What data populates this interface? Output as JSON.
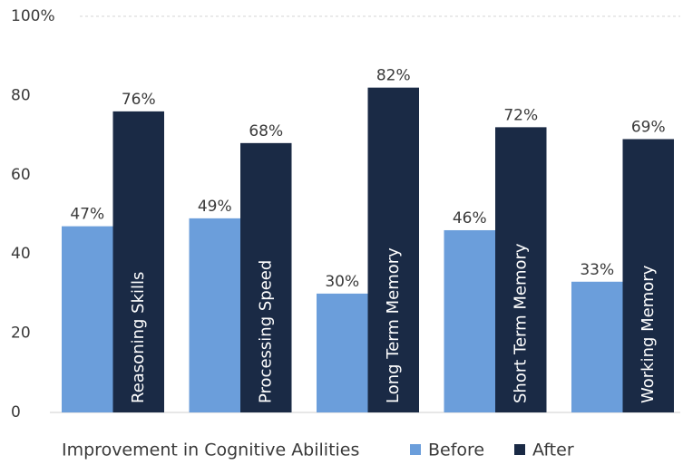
{
  "chart_data": {
    "type": "bar",
    "categories": [
      "Reasoning Skills",
      "Processing Speed",
      "Long Term Memory",
      "Short Term Memory",
      "Working Memory"
    ],
    "series": [
      {
        "name": "Before",
        "color": "#6b9edb",
        "values": [
          47,
          49,
          30,
          46,
          33
        ],
        "value_labels": [
          "47%",
          "49%",
          "30%",
          "46%",
          "33%"
        ]
      },
      {
        "name": "After",
        "color": "#1a2a45",
        "values": [
          76,
          68,
          82,
          72,
          69
        ],
        "value_labels": [
          "76%",
          "68%",
          "82%",
          "72%",
          "69%"
        ]
      }
    ],
    "legend_title": "Improvement in Cognitive Abilities",
    "ylim": [
      0,
      100
    ],
    "yticks": [
      0,
      20,
      40,
      60,
      80,
      {
        "value": 100,
        "label": "100%"
      }
    ],
    "legend": "bottom"
  }
}
